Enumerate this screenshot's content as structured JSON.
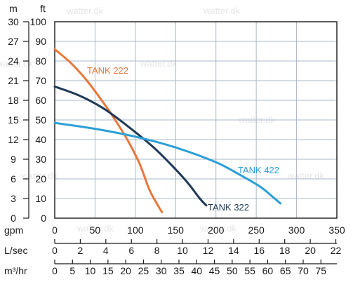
{
  "watermark": "watter.dk",
  "chart_data": {
    "type": "line",
    "left_axes": {
      "m": {
        "label": "m",
        "ticks": [
          "30",
          "27",
          "24",
          "21",
          "18",
          "15",
          "12",
          "9",
          "6",
          "3",
          "0"
        ]
      },
      "ft": {
        "label": "ft",
        "ticks": [
          "100",
          "90",
          "80",
          "70",
          "60",
          "50",
          "40",
          "30",
          "20",
          "10",
          "0"
        ],
        "ylim": [
          0,
          100
        ]
      }
    },
    "bottom_axes": {
      "gpm": {
        "label": "gpm",
        "ticks": [
          "0",
          "50",
          "100",
          "150",
          "200",
          "250",
          "300",
          "350"
        ],
        "xlim": [
          0,
          350
        ]
      },
      "lsec": {
        "label": "L/sec",
        "ticks": [
          "0",
          "2",
          "4",
          "6",
          "8",
          "10",
          "12",
          "14",
          "16",
          "18",
          "20",
          "22"
        ]
      },
      "m3hr": {
        "label": "m³/hr",
        "ticks": [
          "0",
          "5",
          "10",
          "15",
          "20",
          "25",
          "30",
          "35",
          "40",
          "45",
          "50",
          "55",
          "60",
          "65",
          "70",
          "75"
        ]
      }
    },
    "series": [
      {
        "name": "TANK 222",
        "color": "#e8773a",
        "points": [
          [
            0,
            86
          ],
          [
            20,
            79
          ],
          [
            40,
            70
          ],
          [
            60,
            59
          ],
          [
            75,
            50
          ],
          [
            90,
            40
          ],
          [
            105,
            28
          ],
          [
            118,
            14
          ],
          [
            133,
            3
          ]
        ]
      },
      {
        "name": "TANK 322",
        "color": "#1f3a57",
        "points": [
          [
            0,
            67
          ],
          [
            30,
            62.5
          ],
          [
            60,
            56
          ],
          [
            90,
            47
          ],
          [
            120,
            37
          ],
          [
            145,
            27
          ],
          [
            165,
            18
          ],
          [
            180,
            10
          ],
          [
            188,
            6.5
          ]
        ]
      },
      {
        "name": "TANK 422",
        "color": "#2b9fd6",
        "points": [
          [
            0,
            48.5
          ],
          [
            50,
            45.5
          ],
          [
            100,
            41.5
          ],
          [
            150,
            36
          ],
          [
            200,
            28.5
          ],
          [
            230,
            22
          ],
          [
            255,
            16
          ],
          [
            270,
            11
          ],
          [
            280,
            7.5
          ]
        ]
      }
    ]
  }
}
